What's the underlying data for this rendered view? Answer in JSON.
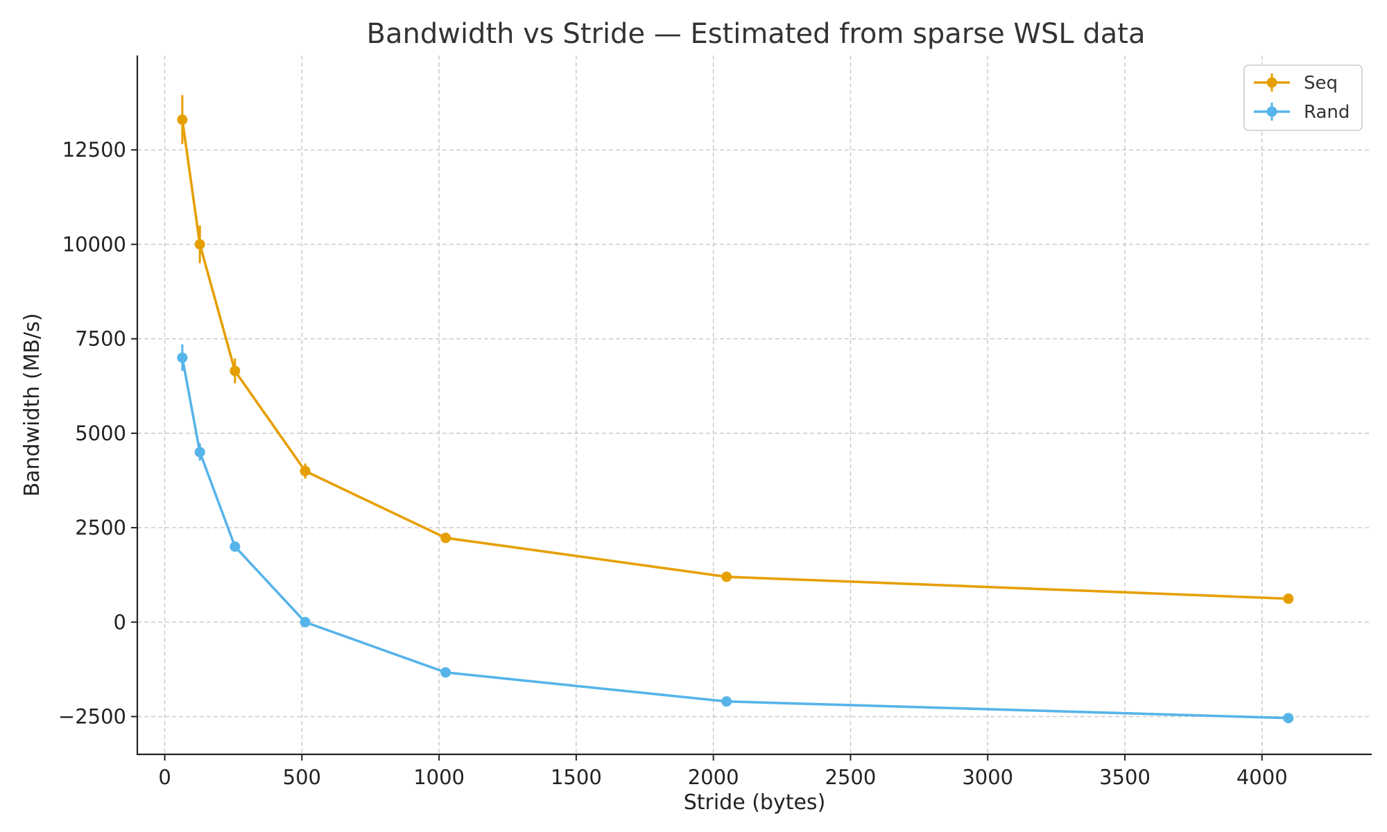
{
  "chart_data": {
    "type": "line",
    "title": "Bandwidth vs Stride — Estimated from sparse WSL data",
    "xlabel": "Stride (bytes)",
    "ylabel": "Bandwidth (MB/s)",
    "xlim": [
      -100,
      4400
    ],
    "ylim": [
      -3500,
      15000
    ],
    "xticks": [
      0,
      500,
      1000,
      1500,
      2000,
      2500,
      3000,
      3500,
      4000
    ],
    "yticks": [
      -2500,
      0,
      2500,
      5000,
      7500,
      10000,
      12500
    ],
    "ytick_labels": [
      "−2500",
      "0",
      "2500",
      "5000",
      "7500",
      "10000",
      "12500"
    ],
    "grid": true,
    "legend_position": "top-right",
    "x": [
      64,
      128,
      256,
      512,
      1024,
      2048,
      4096
    ],
    "series": [
      {
        "name": "Seq",
        "color": "#E69F00",
        "values": [
          13300,
          10000,
          6650,
          4000,
          2230,
          1200,
          620
        ],
        "errors": [
          650,
          500,
          330,
          200,
          110,
          60,
          30
        ]
      },
      {
        "name": "Rand",
        "color": "#56B4E9",
        "values": [
          7000,
          4500,
          2000,
          0,
          -1330,
          -2100,
          -2540
        ],
        "errors": [
          350,
          230,
          100,
          30,
          30,
          40,
          40
        ]
      }
    ]
  }
}
